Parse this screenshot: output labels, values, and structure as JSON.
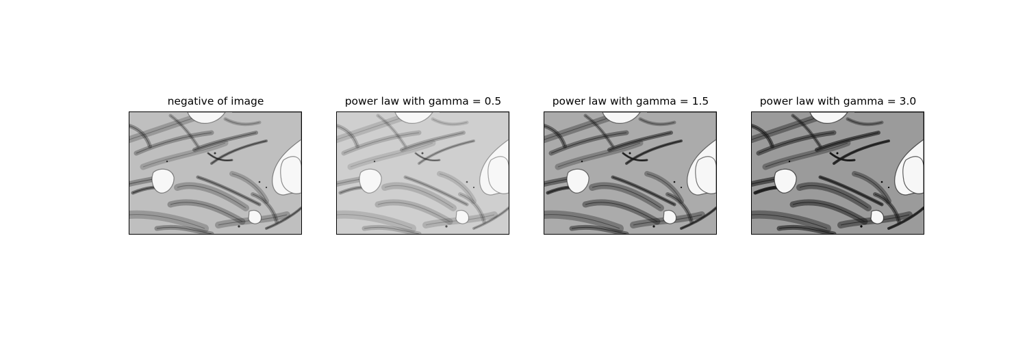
{
  "figure": {
    "panels": [
      {
        "title": "negative of image",
        "gamma": null,
        "depiction": "grayscale micrograph of fibrous cells, inverted"
      },
      {
        "title": "power law with gamma = 0.5",
        "gamma": 0.5,
        "depiction": "grayscale micrograph, brightened"
      },
      {
        "title": "power law with gamma = 1.5",
        "gamma": 1.5,
        "depiction": "grayscale micrograph, darkened"
      },
      {
        "title": "power law with gamma = 3.0",
        "gamma": 3.0,
        "depiction": "grayscale micrograph, strongly darkened"
      }
    ]
  },
  "colors": {
    "background": "#ffffff",
    "frame": "#000000",
    "ink": "#1a1a1a"
  }
}
